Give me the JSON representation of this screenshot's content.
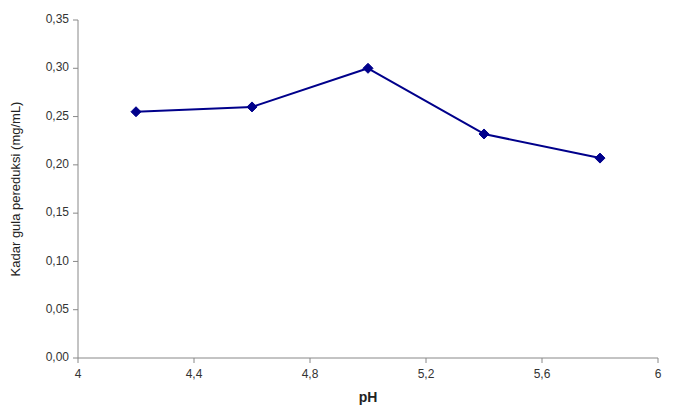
{
  "chart_data": {
    "type": "line",
    "x": [
      4.2,
      4.6,
      5.0,
      5.4,
      5.8
    ],
    "values": [
      0.255,
      0.26,
      0.3,
      0.232,
      0.207
    ],
    "color": "#00008B",
    "marker": "diamond",
    "xlabel": "pH",
    "ylabel": "Kadar gula pereduksi (mg/mL)",
    "xlim": [
      4,
      6
    ],
    "ylim": [
      0,
      0.35
    ],
    "xticks": [
      4,
      {
        "value": 4.4,
        "label": "4,4"
      },
      {
        "value": 4.8,
        "label": "4,8"
      },
      {
        "value": 5.2,
        "label": "5,2"
      },
      {
        "value": 5.6,
        "label": "5,6"
      },
      6
    ],
    "yticks": [
      {
        "value": 0,
        "label": "0,00"
      },
      {
        "value": 0.05,
        "label": "0,05"
      },
      {
        "value": 0.1,
        "label": "0,10"
      },
      {
        "value": 0.15,
        "label": "0,15"
      },
      {
        "value": 0.2,
        "label": "0,20"
      },
      {
        "value": 0.25,
        "label": "0,25"
      },
      {
        "value": 0.3,
        "label": "0,30"
      },
      {
        "value": 0.35,
        "label": "0,35"
      }
    ],
    "grid": false
  }
}
